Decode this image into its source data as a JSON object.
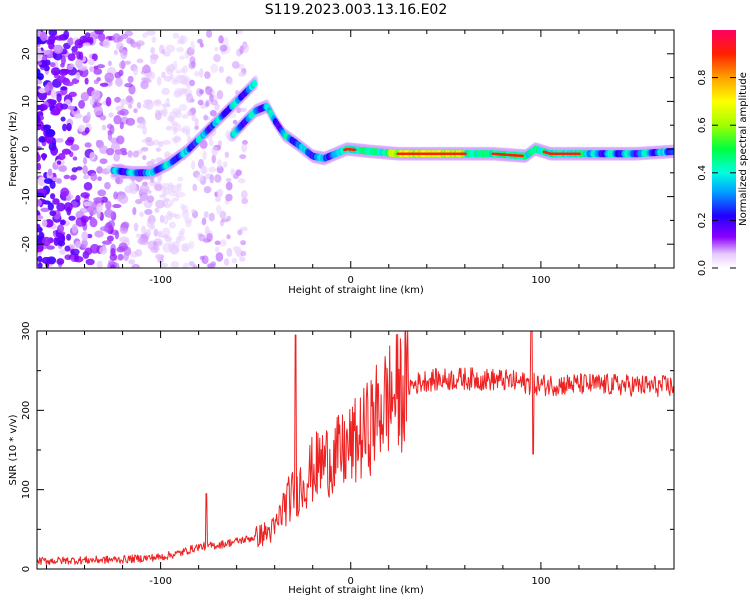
{
  "title": "S119.2023.003.13.16.E02",
  "chart_data": [
    {
      "type": "heatmap",
      "xlabel": "Height of straight line (km)",
      "ylabel": "Frequency (Hz)",
      "xlim": [
        -165,
        170
      ],
      "ylim": [
        -25,
        25
      ],
      "xticks": [
        -100,
        0,
        100
      ],
      "xtick_labels": [
        "-100",
        "0",
        "100"
      ],
      "yticks": [
        -20,
        -10,
        0,
        10,
        20
      ],
      "ytick_labels": [
        "-20",
        "-10",
        "0",
        "10",
        "20"
      ],
      "colorbar": {
        "label": "Normalized spectral amplitude",
        "range": [
          0,
          1
        ],
        "ticks": [
          0.0,
          0.2,
          0.4,
          0.6,
          0.8
        ],
        "tick_labels": [
          "0.0",
          "0.2",
          "0.4",
          "0.6",
          "0.8"
        ],
        "colormap": "rainbow"
      },
      "ridges": [
        {
          "x": [
            -125,
            -115,
            -105,
            -95,
            -85,
            -75,
            -65,
            -55,
            -50
          ],
          "y": [
            -4.5,
            -5,
            -5,
            -3,
            0,
            4,
            8,
            12,
            14
          ]
        },
        {
          "x": [
            -62,
            -55,
            -50,
            -44,
            -40,
            -35,
            -28,
            -20,
            -14,
            -8,
            -2,
            10,
            25,
            50,
            75,
            92,
            97,
            105,
            125,
            150,
            170
          ],
          "y": [
            3,
            6,
            8,
            9,
            6,
            3,
            1,
            -1.5,
            -2,
            -1,
            0,
            -0.5,
            -1,
            -1,
            -1,
            -1.5,
            0,
            -1,
            -1,
            -1,
            -0.5
          ]
        }
      ]
    },
    {
      "type": "line",
      "xlabel": "Height of straight line (km)",
      "ylabel": "SNR (10 * v/v)",
      "xlim": [
        -165,
        170
      ],
      "ylim": [
        0,
        300
      ],
      "xticks": [
        -100,
        0,
        100
      ],
      "xtick_labels": [
        "-100",
        "0",
        "100"
      ],
      "yticks": [
        0,
        100,
        200,
        300
      ],
      "ytick_labels": [
        "0",
        "100",
        "200",
        "300"
      ],
      "series_color": "#ee2222",
      "envelope": {
        "x": [
          -165,
          -120,
          -100,
          -90,
          -80,
          -70,
          -60,
          -50,
          -40,
          -35,
          -30,
          -25,
          -20,
          -15,
          -10,
          -5,
          0,
          5,
          10,
          15,
          20,
          30,
          40,
          60,
          80,
          90,
          100,
          120,
          140,
          170
        ],
        "y": [
          10,
          12,
          15,
          20,
          28,
          30,
          35,
          40,
          50,
          80,
          95,
          110,
          125,
          135,
          140,
          145,
          155,
          165,
          180,
          200,
          215,
          230,
          238,
          240,
          238,
          235,
          232,
          233,
          232,
          230
        ]
      },
      "spikes": [
        {
          "x": -76,
          "y": 95
        },
        {
          "x": -29,
          "y": 295
        },
        {
          "x": 95,
          "y": 300
        },
        {
          "x": 96,
          "y": 145
        }
      ]
    }
  ]
}
